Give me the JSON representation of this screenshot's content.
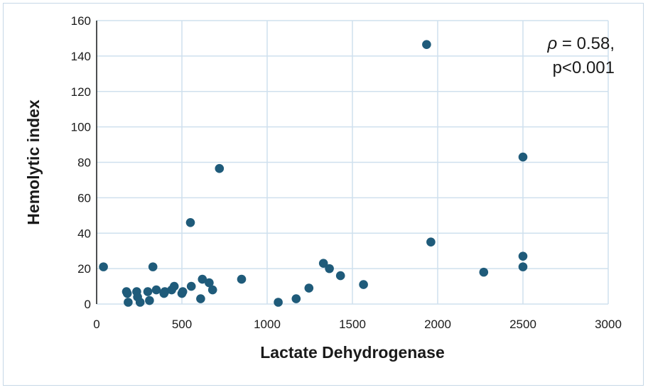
{
  "chart_data": {
    "type": "scatter",
    "xlabel": "Lactate Dehydrogenase",
    "ylabel": "Hemolytic index",
    "xlim": [
      0,
      3000
    ],
    "ylim": [
      0,
      160
    ],
    "xticks": [
      0,
      500,
      1000,
      1500,
      2000,
      2500,
      3000
    ],
    "yticks": [
      0,
      20,
      40,
      60,
      80,
      100,
      120,
      140,
      160
    ],
    "xtick_labels": [
      "0",
      "500",
      "1000",
      "1500",
      "2000",
      "2500",
      "3000"
    ],
    "ytick_labels": [
      "0",
      "20",
      "40",
      "60",
      "80",
      "100",
      "120",
      "140",
      "160"
    ],
    "grid": true,
    "marker_color": "#1f5b7a",
    "gridline_color": "#cfe0ee",
    "annotation": {
      "rho_symbol": "ρ",
      "line1_rest": " = 0.58,",
      "line2": "p<0.001"
    },
    "points": [
      {
        "x": 40,
        "y": 21
      },
      {
        "x": 175,
        "y": 7
      },
      {
        "x": 180,
        "y": 6
      },
      {
        "x": 185,
        "y": 1
      },
      {
        "x": 235,
        "y": 7
      },
      {
        "x": 240,
        "y": 4
      },
      {
        "x": 255,
        "y": 1
      },
      {
        "x": 300,
        "y": 7
      },
      {
        "x": 310,
        "y": 2
      },
      {
        "x": 330,
        "y": 21
      },
      {
        "x": 350,
        "y": 8
      },
      {
        "x": 395,
        "y": 6
      },
      {
        "x": 400,
        "y": 7
      },
      {
        "x": 440,
        "y": 8
      },
      {
        "x": 455,
        "y": 10
      },
      {
        "x": 500,
        "y": 6
      },
      {
        "x": 505,
        "y": 7
      },
      {
        "x": 550,
        "y": 46
      },
      {
        "x": 555,
        "y": 10
      },
      {
        "x": 610,
        "y": 3
      },
      {
        "x": 620,
        "y": 14
      },
      {
        "x": 660,
        "y": 12
      },
      {
        "x": 680,
        "y": 8
      },
      {
        "x": 720,
        "y": 76.5
      },
      {
        "x": 850,
        "y": 14
      },
      {
        "x": 1065,
        "y": 1
      },
      {
        "x": 1170,
        "y": 3
      },
      {
        "x": 1245,
        "y": 9
      },
      {
        "x": 1330,
        "y": 23
      },
      {
        "x": 1365,
        "y": 20
      },
      {
        "x": 1430,
        "y": 16
      },
      {
        "x": 1565,
        "y": 11
      },
      {
        "x": 1935,
        "y": 146.5
      },
      {
        "x": 1960,
        "y": 35
      },
      {
        "x": 2270,
        "y": 18
      },
      {
        "x": 2500,
        "y": 83
      },
      {
        "x": 2500,
        "y": 27
      },
      {
        "x": 2500,
        "y": 21
      }
    ]
  }
}
